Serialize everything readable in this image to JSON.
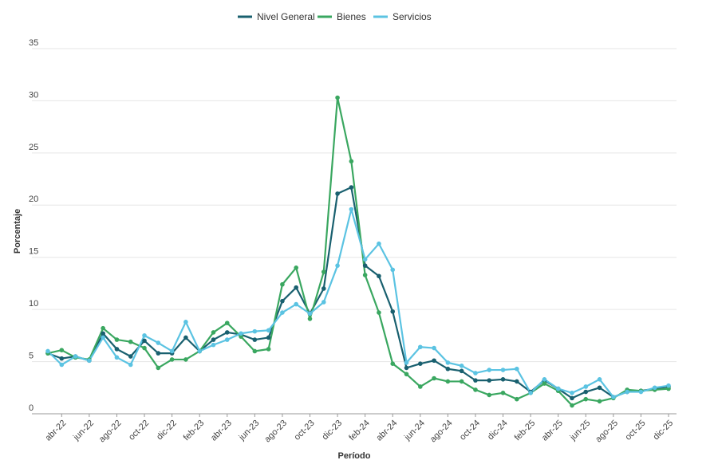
{
  "chart_data": {
    "type": "line",
    "x_label": "Período",
    "y_label": "Porcentaje",
    "categories": [
      null,
      "abr-22",
      null,
      "jun-22",
      null,
      "ago-22",
      null,
      "oct-22",
      null,
      "dic-22",
      null,
      "feb-23",
      null,
      "abr-23",
      null,
      "jun-23",
      null,
      "ago-23",
      null,
      "oct-23",
      null,
      "dic-23",
      null,
      "feb-24",
      null,
      "abr-24",
      null,
      "jun-24",
      null,
      "ago-24",
      null,
      "oct-24",
      null,
      "dic-24",
      null,
      "feb-25",
      null,
      "abr-25",
      null,
      "jun-25",
      null,
      "ago-25",
      null,
      "oct-25",
      null,
      "dic-25"
    ],
    "series": [
      {
        "name": "Nivel General",
        "color": "#19606f",
        "values": [
          5.8,
          5.3,
          5.5,
          5.1,
          7.7,
          6.2,
          5.5,
          7.0,
          5.8,
          5.8,
          7.3,
          6.0,
          7.1,
          7.8,
          7.6,
          7.1,
          7.3,
          10.8,
          12.1,
          9.6,
          12.0,
          21.1,
          21.7,
          14.2,
          13.2,
          9.8,
          4.4,
          4.8,
          5.1,
          4.3,
          4.1,
          3.2,
          3.2,
          3.3,
          3.1,
          2.1,
          3.2,
          2.4,
          1.5,
          2.1,
          2.5,
          1.6,
          2.1,
          2.2,
          2.4,
          2.6
        ]
      },
      {
        "name": "Bienes",
        "color": "#3aa760",
        "values": [
          5.8,
          6.1,
          5.4,
          5.2,
          8.2,
          7.1,
          6.9,
          6.3,
          4.4,
          5.2,
          5.2,
          6.0,
          7.8,
          8.7,
          7.4,
          6.0,
          6.2,
          12.4,
          14.0,
          9.1,
          13.6,
          30.3,
          24.2,
          13.3,
          9.7,
          4.8,
          3.8,
          2.6,
          3.4,
          3.1,
          3.1,
          2.3,
          1.8,
          2.0,
          1.4,
          2.0,
          2.9,
          2.2,
          0.8,
          1.4,
          1.2,
          1.5,
          2.3,
          2.2,
          2.3,
          2.4
        ]
      },
      {
        "name": "Servicios",
        "color": "#5bc3e2",
        "values": [
          6.0,
          4.7,
          5.5,
          5.1,
          7.3,
          5.4,
          4.7,
          7.5,
          6.8,
          6.0,
          8.8,
          6.0,
          6.6,
          7.1,
          7.7,
          7.9,
          8.0,
          9.7,
          10.5,
          9.6,
          10.7,
          14.2,
          19.6,
          14.8,
          16.3,
          13.8,
          4.9,
          6.4,
          6.3,
          4.9,
          4.6,
          3.9,
          4.2,
          4.2,
          4.3,
          2.0,
          3.3,
          2.4,
          2.0,
          2.6,
          3.3,
          1.6,
          2.1,
          2.1,
          2.5,
          2.7
        ]
      }
    ],
    "ylim": [
      0,
      35
    ],
    "yticks": [
      0,
      5,
      10,
      15,
      20,
      25,
      30,
      35
    ],
    "grid": true,
    "legend": "top"
  }
}
